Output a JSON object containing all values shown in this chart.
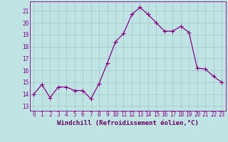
{
  "x": [
    0,
    1,
    2,
    3,
    4,
    5,
    6,
    7,
    8,
    9,
    10,
    11,
    12,
    13,
    14,
    15,
    16,
    17,
    18,
    19,
    20,
    21,
    22,
    23
  ],
  "y": [
    14.0,
    14.8,
    13.7,
    14.6,
    14.6,
    14.3,
    14.3,
    13.6,
    14.9,
    16.6,
    18.4,
    19.1,
    20.7,
    21.3,
    20.7,
    20.0,
    19.3,
    19.3,
    19.7,
    19.2,
    16.2,
    16.1,
    15.5,
    15.0
  ],
  "line_color": "#880088",
  "marker": "+",
  "marker_size": 4,
  "marker_linewidth": 0.8,
  "bg_color": "#c0e4e4",
  "grid_color": "#a0c8c8",
  "xlabel": "Windchill (Refroidissement éolien,°C)",
  "ylabel_ticks": [
    13,
    14,
    15,
    16,
    17,
    18,
    19,
    20,
    21
  ],
  "ylim": [
    12.6,
    21.8
  ],
  "xlim": [
    -0.5,
    23.5
  ],
  "tick_color": "#880088",
  "label_color": "#660066",
  "xlabel_fontsize": 6.5,
  "tick_fontsize": 5.5,
  "linewidth": 0.9
}
